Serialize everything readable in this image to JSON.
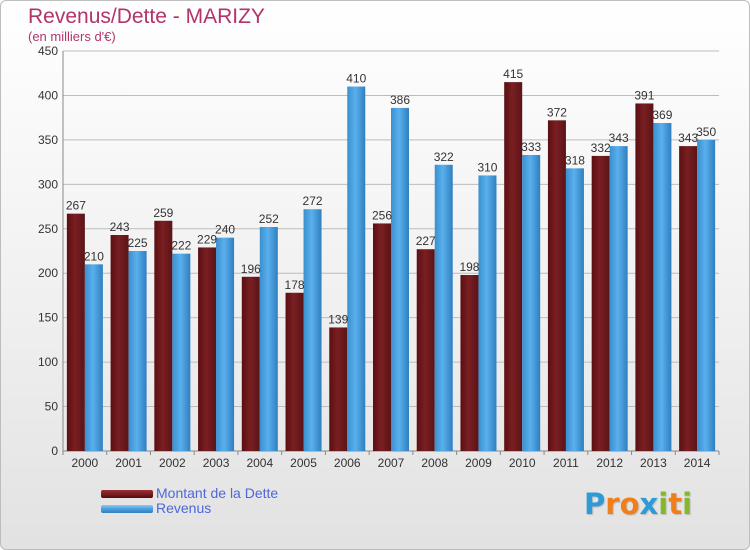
{
  "header": {
    "title": "Revenus/Dette - MARIZY",
    "subtitle": "(en milliers d'€)"
  },
  "logo": {
    "text": "Proxiti",
    "letters": [
      {
        "ch": "P",
        "color": "#2e9ad8"
      },
      {
        "ch": "r",
        "color": "#f07f1a"
      },
      {
        "ch": "o",
        "color": "#f07f1a"
      },
      {
        "ch": "x",
        "color": "#2e9ad8"
      },
      {
        "ch": "i",
        "color": "#83b82d"
      },
      {
        "ch": "t",
        "color": "#f07f1a"
      },
      {
        "ch": "i",
        "color": "#83b82d"
      }
    ]
  },
  "colors": {
    "dette": "#7a1f22",
    "revenus": "#4a9fdf",
    "axis_text": "#333333",
    "value_text": "#333333"
  },
  "chart_data": {
    "type": "bar",
    "title": "Revenus/Dette - MARIZY",
    "subtitle": "(en milliers d'€)",
    "categories": [
      "2000",
      "2001",
      "2002",
      "2003",
      "2004",
      "2005",
      "2006",
      "2007",
      "2008",
      "2009",
      "2010",
      "2011",
      "2012",
      "2013",
      "2014"
    ],
    "series": [
      {
        "name": "Montant de la Dette",
        "values": [
          267,
          243,
          259,
          229,
          196,
          178,
          139,
          256,
          227,
          198,
          415,
          372,
          332,
          391,
          343
        ]
      },
      {
        "name": "Revenus",
        "values": [
          210,
          225,
          222,
          240,
          252,
          272,
          410,
          386,
          322,
          310,
          333,
          318,
          343,
          369,
          350
        ]
      }
    ],
    "ylim": [
      0,
      450
    ],
    "yticks": [
      "0",
      "50",
      "100",
      "150",
      "200",
      "250",
      "300",
      "350",
      "400",
      "450"
    ],
    "grid": true,
    "legend": "bottom-left"
  }
}
